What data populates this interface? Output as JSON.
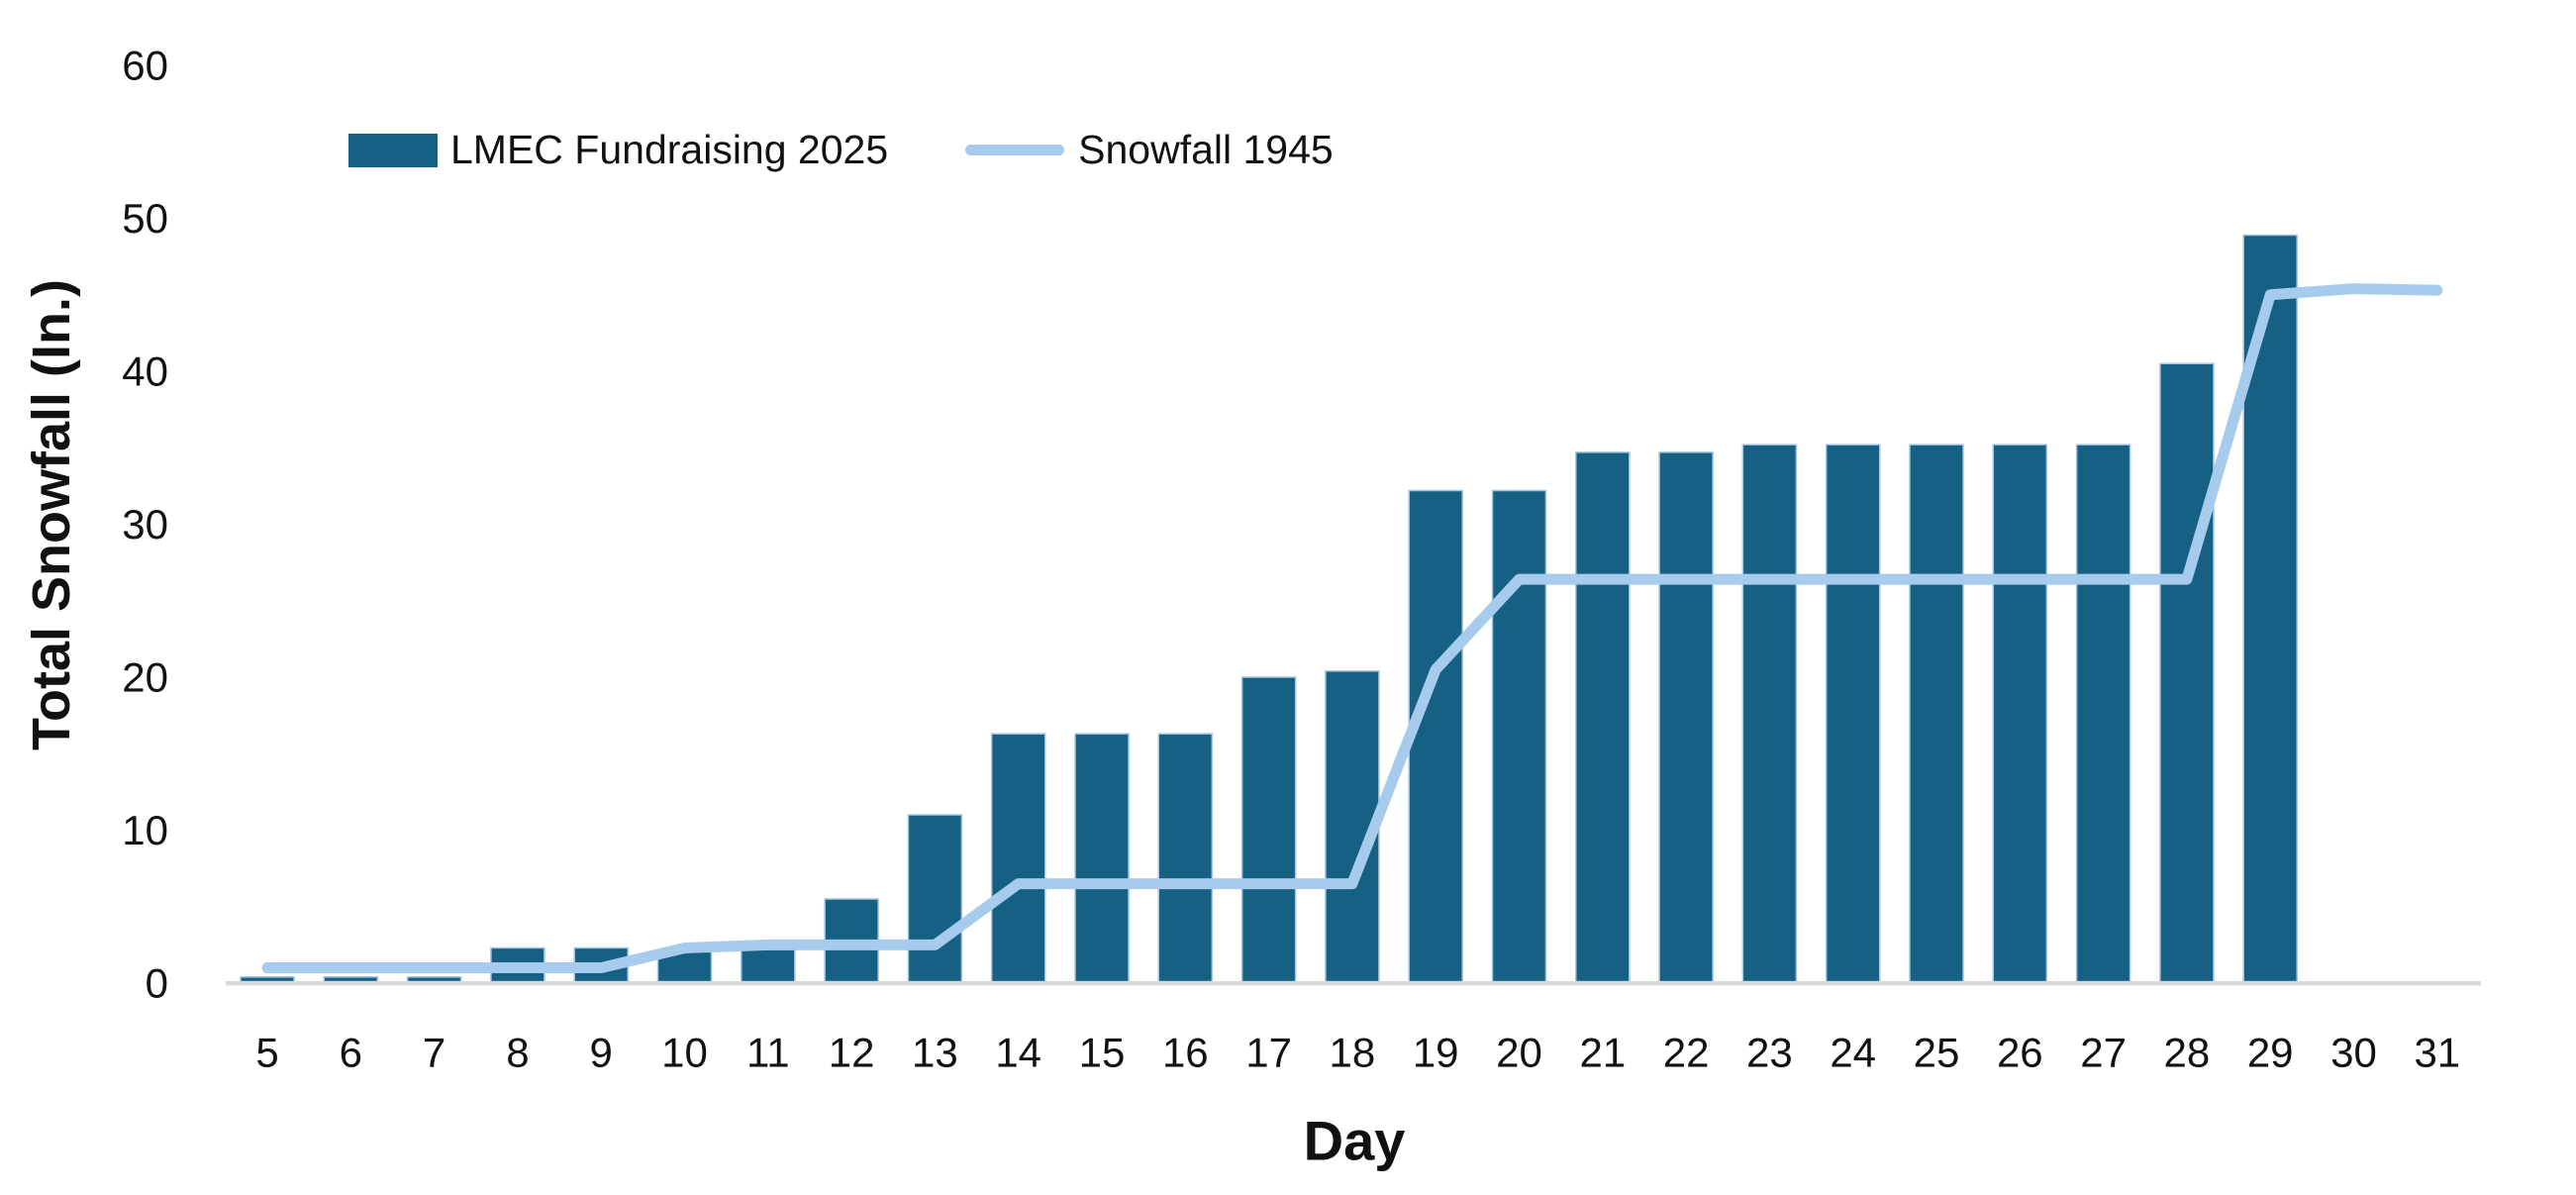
{
  "chart_data": {
    "type": "combo",
    "title": "",
    "categories": [
      "5",
      "6",
      "7",
      "8",
      "9",
      "10",
      "11",
      "12",
      "13",
      "14",
      "15",
      "16",
      "17",
      "18",
      "19",
      "20",
      "21",
      "22",
      "23",
      "24",
      "25",
      "26",
      "27",
      "28",
      "29",
      "30",
      "31"
    ],
    "series": [
      {
        "name": "LMEC Fundraising 2025",
        "type": "bar",
        "color": "#166083",
        "bar_outline_color": "#A3C4DE",
        "values": [
          0.4,
          0.4,
          0.4,
          2.3,
          2.3,
          2.2,
          2.2,
          5.5,
          11,
          16.3,
          16.3,
          16.3,
          20,
          20.4,
          32.2,
          32.2,
          34.7,
          34.7,
          35.2,
          35.2,
          35.2,
          35.2,
          35.2,
          40.5,
          48.9,
          null,
          null
        ]
      },
      {
        "name": "Snowfall 1945",
        "type": "line",
        "color": "#A7CBEC",
        "values": [
          1,
          1,
          1,
          1,
          1,
          2.3,
          2.5,
          2.5,
          2.5,
          6.5,
          6.5,
          6.5,
          6.5,
          6.5,
          20.5,
          26.4,
          26.4,
          26.4,
          26.4,
          26.4,
          26.4,
          26.4,
          26.4,
          26.4,
          45,
          45.4,
          45.3
        ]
      }
    ],
    "xlabel": "Day",
    "ylabel": "Total Snowfall (In.)",
    "ylim": [
      0,
      60
    ],
    "yticks": [
      0,
      10,
      20,
      30,
      40,
      50,
      60
    ],
    "grid": false,
    "legend_position": "top-left",
    "axis_line_color": "#D9D9D9",
    "tick_label_color": "#111111"
  }
}
